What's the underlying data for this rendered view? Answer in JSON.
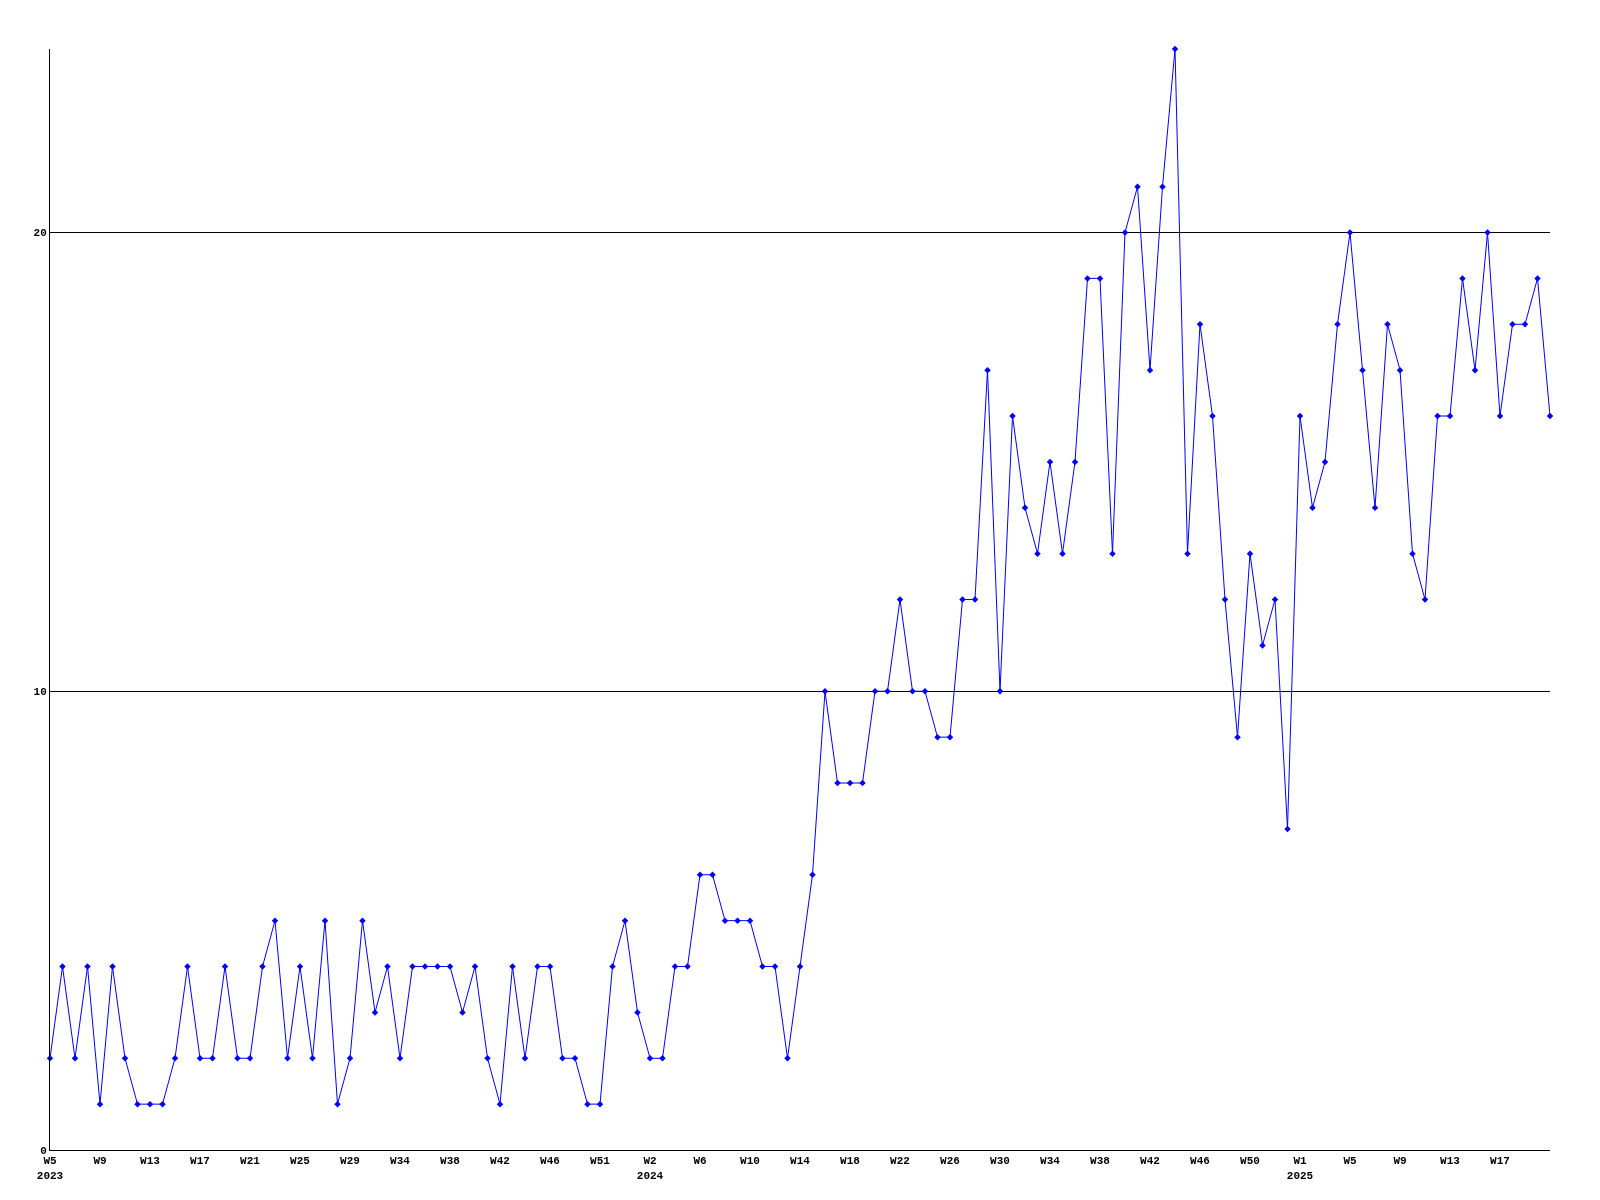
{
  "chart_data": {
    "type": "line",
    "categories": [
      "W5\n2023",
      null,
      null,
      null,
      "W9",
      null,
      null,
      null,
      "W13",
      null,
      null,
      null,
      "W17",
      null,
      null,
      null,
      "W21",
      null,
      null,
      null,
      "W25",
      null,
      null,
      null,
      "W29",
      null,
      null,
      null,
      "W34",
      null,
      null,
      null,
      "W38",
      null,
      null,
      null,
      "W42",
      null,
      null,
      null,
      "W46",
      null,
      null,
      null,
      "W51",
      null,
      null,
      null,
      "W2\n2024",
      null,
      null,
      null,
      "W6",
      null,
      null,
      null,
      "W10",
      null,
      null,
      null,
      "W14",
      null,
      null,
      null,
      "W18",
      null,
      null,
      null,
      "W22",
      null,
      null,
      null,
      "W26",
      null,
      null,
      null,
      "W30",
      null,
      null,
      null,
      "W34",
      null,
      null,
      null,
      "W38",
      null,
      null,
      null,
      "W42",
      null,
      null,
      null,
      "W46",
      null,
      null,
      null,
      "W50",
      null,
      null,
      null,
      "W1\n2025",
      null,
      null,
      null,
      "W5",
      null,
      null,
      null,
      "W9",
      null,
      null,
      null,
      "W13",
      null,
      null,
      null,
      "W17",
      null,
      null,
      null,
      null
    ],
    "series": [
      {
        "color": "#0000ff",
        "values": [
          2,
          4,
          2,
          4,
          1,
          4,
          2,
          1,
          1,
          1,
          2,
          4,
          2,
          2,
          4,
          2,
          2,
          4,
          5,
          2,
          4,
          2,
          5,
          1,
          2,
          5,
          3,
          4,
          2,
          4,
          4,
          4,
          4,
          3,
          4,
          2,
          1,
          4,
          2,
          4,
          4,
          2,
          2,
          1,
          1,
          4,
          5,
          3,
          2,
          2,
          4,
          4,
          6,
          6,
          5,
          5,
          5,
          4,
          4,
          2,
          4,
          6,
          10,
          8,
          8,
          8,
          10,
          10,
          12,
          10,
          10,
          9,
          9,
          12,
          12,
          17,
          10,
          16,
          14,
          13,
          15,
          13,
          15,
          19,
          19,
          13,
          20,
          21,
          17,
          21,
          24,
          13,
          18,
          16,
          12,
          9,
          13,
          11,
          12,
          7,
          16,
          14,
          15,
          18,
          20,
          17,
          14,
          18,
          17,
          13,
          12,
          16,
          16,
          19,
          17,
          20,
          16,
          18,
          18,
          19,
          16
        ]
      }
    ],
    "ylim": [
      0,
      24
    ],
    "yticks": [
      0,
      10,
      20
    ],
    "grid": "y",
    "marker": "diamond",
    "line_style": "solid",
    "legend": false
  }
}
